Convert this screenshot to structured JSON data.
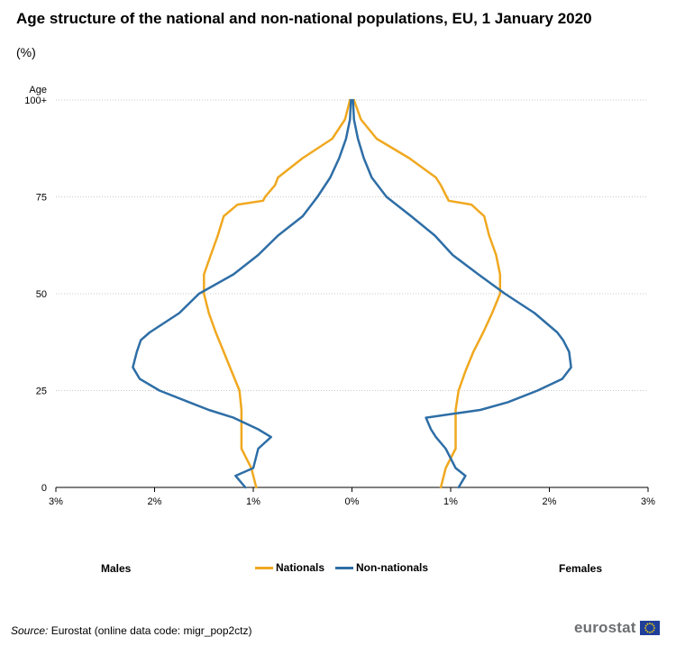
{
  "title": "Age structure of the national and non-national populations, EU, 1 January 2020",
  "subtitle": "(%)",
  "labels": {
    "males": "Males",
    "females": "Females"
  },
  "source": {
    "label": "Source:",
    "text": "Eurostat (online data code: migr_pop2ctz)"
  },
  "logo": {
    "text": "eurostat"
  },
  "colors": {
    "nationals": "#f0a81f",
    "non_nationals": "#2e6ea6",
    "grid": "#c8c8c8",
    "axis": "#000000"
  },
  "chart_data": {
    "type": "line",
    "title": "Age structure of the national and non-national populations, EU, 1 January 2020",
    "xlabel": "%",
    "ylabel": "Age",
    "xlim": [
      -3,
      3
    ],
    "ylim": [
      0,
      100
    ],
    "x_ticks": [
      -3,
      -2,
      -1,
      0,
      1,
      2,
      3
    ],
    "x_tick_labels": [
      "3%",
      "2%",
      "1%",
      "0%",
      "1%",
      "2%",
      "3%"
    ],
    "y_ticks": [
      0,
      25,
      50,
      75,
      100
    ],
    "y_tick_labels": [
      "0",
      "25",
      "50",
      "75",
      "100+"
    ],
    "y_axis_title": "Age",
    "series": [
      {
        "name": "Nationals",
        "ages": [
          0,
          5,
          10,
          15,
          20,
          25,
          30,
          35,
          40,
          45,
          50,
          55,
          60,
          65,
          70,
          73,
          74,
          75,
          78,
          80,
          85,
          90,
          95,
          100
        ],
        "males": [
          0.97,
          1.02,
          1.12,
          1.12,
          1.12,
          1.14,
          1.22,
          1.3,
          1.38,
          1.45,
          1.5,
          1.5,
          1.43,
          1.36,
          1.3,
          1.16,
          0.9,
          0.88,
          0.78,
          0.75,
          0.5,
          0.2,
          0.07,
          0.02
        ],
        "females": [
          0.9,
          0.95,
          1.05,
          1.05,
          1.05,
          1.08,
          1.15,
          1.23,
          1.33,
          1.42,
          1.5,
          1.5,
          1.46,
          1.39,
          1.34,
          1.21,
          0.98,
          0.96,
          0.9,
          0.85,
          0.58,
          0.25,
          0.09,
          0.02
        ]
      },
      {
        "name": "Non-nationals",
        "ages": [
          0,
          3,
          5,
          10,
          13,
          15,
          18,
          20,
          22,
          25,
          28,
          31,
          35,
          38,
          40,
          45,
          50,
          55,
          60,
          65,
          70,
          75,
          80,
          85,
          90,
          95,
          100
        ],
        "males": [
          1.08,
          1.18,
          1.0,
          0.95,
          0.82,
          0.95,
          1.2,
          1.45,
          1.65,
          1.95,
          2.15,
          2.22,
          2.18,
          2.14,
          2.05,
          1.75,
          1.55,
          1.2,
          0.95,
          0.75,
          0.5,
          0.35,
          0.22,
          0.13,
          0.06,
          0.02,
          0.01
        ],
        "females": [
          1.08,
          1.15,
          1.05,
          0.95,
          0.85,
          0.8,
          0.75,
          1.3,
          1.58,
          1.88,
          2.13,
          2.22,
          2.2,
          2.14,
          2.08,
          1.85,
          1.55,
          1.28,
          1.02,
          0.84,
          0.6,
          0.35,
          0.2,
          0.12,
          0.06,
          0.02,
          0.01
        ]
      }
    ],
    "legend": [
      "Nationals",
      "Non-nationals"
    ],
    "legend_position": "bottom-center",
    "grid": "horizontal dotted"
  }
}
